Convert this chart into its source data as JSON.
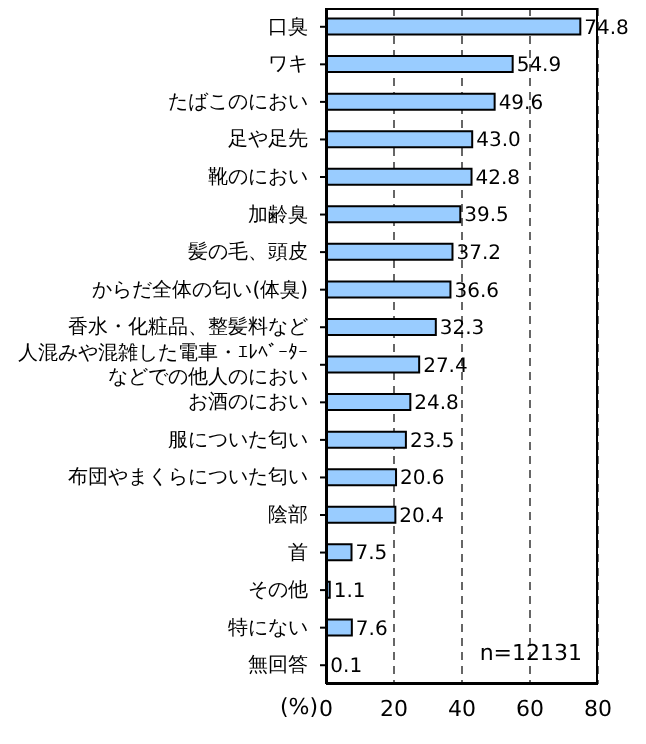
{
  "chart_data": {
    "type": "bar",
    "orientation": "horizontal",
    "xlabel": "(%)",
    "categories": [
      "口臭",
      "ワキ",
      "たばこのにおい",
      "足や足先",
      "靴のにおい",
      "加齢臭",
      "髪の毛、頭皮",
      "からだ全体の匂い(体臭)",
      "香水・化粧品、整髪料など",
      "人混みや混雑した電車・ｴﾚﾍﾞｰﾀｰなどでの他人のにおい",
      "お酒のにおい",
      "服についた匂い",
      "布団やまくらについた匂い",
      "陰部",
      "首",
      "その他",
      "特にない",
      "無回答"
    ],
    "values": [
      74.8,
      54.9,
      49.6,
      43.0,
      42.8,
      39.5,
      37.2,
      36.6,
      32.3,
      27.4,
      24.8,
      23.5,
      20.6,
      20.4,
      7.5,
      1.1,
      7.6,
      0.1
    ],
    "color": "#99ccff",
    "xlim": [
      0,
      80
    ],
    "xticks": [
      0,
      20,
      40,
      60,
      80
    ],
    "grid": "x",
    "value_labels": [
      "74.8",
      "54.9",
      "49.6",
      "43.0",
      "42.8",
      "39.5",
      "37.2",
      "36.6",
      "32.3",
      "27.4",
      "24.8",
      "23.5",
      "20.6",
      "20.4",
      "7.5",
      "1.1",
      "7.6",
      "0.1"
    ],
    "annotations": [
      "n=12131"
    ]
  }
}
